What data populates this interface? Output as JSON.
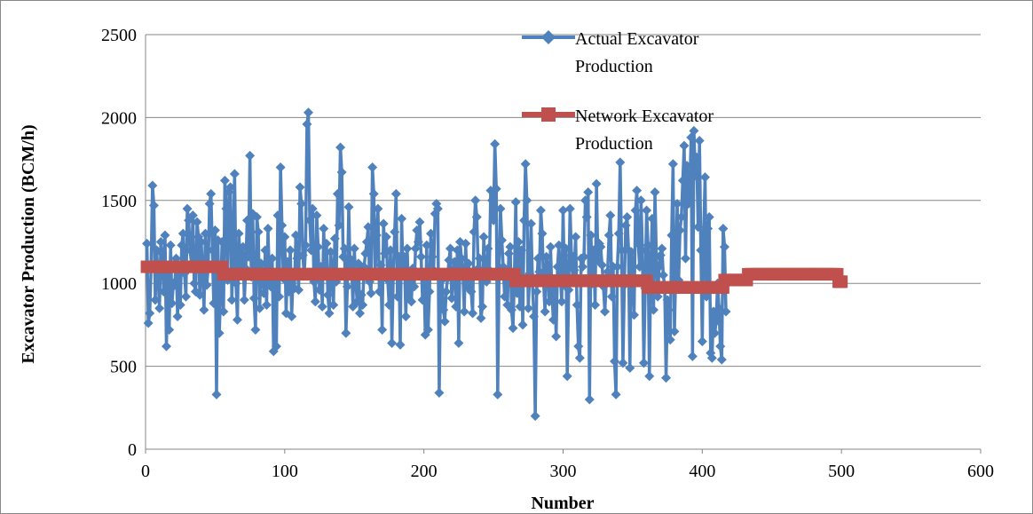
{
  "chart_data": {
    "type": "line",
    "xlabel": "Number",
    "ylabel": "Excavator Production (BCM/h)",
    "xlim": [
      0,
      600
    ],
    "ylim": [
      0,
      2500
    ],
    "x_ticks": [
      0,
      100,
      200,
      300,
      400,
      500,
      600
    ],
    "y_ticks": [
      0,
      500,
      1000,
      1500,
      2000,
      2500
    ],
    "grid": "horizontal",
    "legend_position": "top-center",
    "series": [
      {
        "name": "Actual Excavator Production",
        "color": "#4F81BD",
        "marker": "diamond",
        "x_start": 1,
        "x_step": 1,
        "values": [
          1240,
          760,
          820,
          1100,
          1590,
          1470,
          900,
          1200,
          1050,
          850,
          1250,
          1180,
          950,
          1290,
          620,
          1080,
          720,
          1230,
          880,
          1000,
          990,
          1150,
          800,
          1050,
          870,
          1230,
          1300,
          1060,
          920,
          1450,
          1380,
          1200,
          1120,
          1410,
          1000,
          950,
          1370,
          1280,
          930,
          1250,
          1080,
          840,
          1300,
          990,
          1100,
          1480,
          1540,
          1200,
          880,
          1320,
          330,
          1260,
          700,
          960,
          1250,
          830,
          1620,
          1450,
          1020,
          1550,
          1580,
          900,
          1230,
          1660,
          1000,
          780,
          1300,
          1150,
          1050,
          1220,
          900,
          1090,
          1380,
          1160,
          1770,
          1040,
          1420,
          910,
          720,
          1400,
          1310,
          850,
          1120,
          1050,
          940,
          1200,
          870,
          1330,
          1000,
          980,
          1150,
          590,
          1060,
          620,
          1410,
          920,
          1700,
          1350,
          1030,
          1280,
          820,
          1130,
          950,
          1200,
          800,
          1050,
          970,
          1290,
          1150,
          960,
          1580,
          1480,
          1170,
          1050,
          1230,
          1960,
          2030,
          1380,
          1200,
          1450,
          1010,
          890,
          1410,
          1220,
          960,
          1100,
          860,
          1330,
          1050,
          1240,
          930,
          820,
          1190,
          1080,
          870,
          1270,
          1010,
          1540,
          1350,
          1820,
          1670,
          1160,
          1210,
          700,
          980,
          1460,
          1080,
          1140,
          860,
          1210,
          1020,
          890,
          1120,
          820,
          930,
          870,
          1100,
          1180,
          1250,
          1340,
          1010,
          940,
          1700,
          1540,
          1060,
          1290,
          1450,
          950,
          1110,
          720,
          1360,
          1180,
          1280,
          1020,
          870,
          1200,
          640,
          1040,
          1310,
          1540,
          920,
          1160,
          630,
          1390,
          1050,
          1160,
          800,
          1210,
          910,
          1060,
          890,
          1090,
          980,
          1210,
          1320,
          1250,
          1370,
          1160,
          900,
          1050,
          690,
          1230,
          720,
          950,
          1300,
          1160,
          1080,
          1420,
          1480,
          1450,
          340,
          1060,
          1020,
          840,
          770,
          950,
          1030,
          1140,
          1210,
          910,
          1060,
          1130,
          860,
          1200,
          640,
          1250,
          1150,
          1070,
          830,
          1240,
          980,
          1120,
          1050,
          950,
          820,
          1310,
          1500,
          1400,
          1090,
          1150,
          790,
          860,
          1280,
          1060,
          1010,
          1210,
          1080,
          1560,
          1500,
          1380,
          1840,
          1570,
          330,
          1070,
          1450,
          1260,
          1100,
          920,
          1030,
          870,
          1180,
          1220,
          840,
          730,
          1030,
          1490,
          940,
          1250,
          860,
          1200,
          750,
          1380,
          1720,
          1500,
          850,
          1060,
          1360,
          1000,
          800,
          200,
          950,
          1150,
          1070,
          1440,
          1300,
          1010,
          830,
          1160,
          1100,
          890,
          1220,
          930,
          780,
          1000,
          680,
          1100,
          1230,
          1050,
          890,
          1440,
          990,
          1210,
          440,
          960,
          1450,
          1170,
          1020,
          1080,
          1280,
          870,
          620,
          550,
          1150,
          1100,
          1160,
          1500,
          1400,
          1550,
          300,
          1290,
          1000,
          1200,
          870,
          1600,
          1140,
          1240,
          1220,
          1110,
          980,
          830,
          1000,
          1070,
          1290,
          1410,
          920,
          1100,
          530,
          330,
          1100,
          1300,
          1730,
          1200,
          520,
          990,
          1350,
          1400,
          1200,
          490,
          1190,
          1100,
          810,
          1440,
          1560,
          1240,
          1100,
          1500,
          1200,
          520,
          970,
          1440,
          1230,
          440,
          1100,
          1390,
          840,
          1550,
          1160,
          920,
          1100,
          1170,
          1210,
          1050,
          980,
          430,
          900,
          840,
          660,
          1290,
          1720,
          710,
          1100,
          1480,
          1020,
          1320,
          1400,
          1620,
          1830,
          1150,
          1710,
          1480,
          1570,
          1880,
          560,
          1920,
          1650,
          1760,
          1340,
          1860,
          1200,
          650,
          1300,
          1640,
          920,
          1330,
          1400,
          580,
          550,
          830,
          700,
          770,
          1000,
          850,
          620,
          540,
          1330,
          1220,
          830
        ]
      },
      {
        "name": "Network Excavator Production",
        "color": "#C0504D",
        "marker": "square",
        "segments": [
          {
            "x0": 1,
            "x1": 55,
            "y": 1100
          },
          {
            "x0": 56,
            "x1": 265,
            "y": 1055
          },
          {
            "x0": 266,
            "x1": 360,
            "y": 1015
          },
          {
            "x0": 361,
            "x1": 415,
            "y": 975
          },
          {
            "x0": 416,
            "x1": 432,
            "y": 1020
          },
          {
            "x0": 433,
            "x1": 497,
            "y": 1055
          },
          {
            "x0": 498,
            "x1": 500,
            "y": 1010
          }
        ]
      }
    ]
  }
}
